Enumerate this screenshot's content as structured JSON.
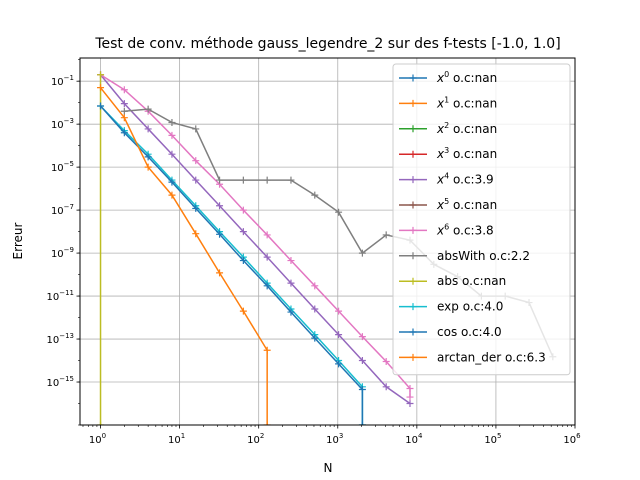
{
  "chart_data": {
    "type": "line",
    "title": "Test de conv. méthode gauss_legendre_2 sur des f-tests [-1.0, 1.0]",
    "xlabel": "N",
    "ylabel": "Erreur",
    "xscale": "log",
    "yscale": "log",
    "xlim": [
      0.55,
      1000000
    ],
    "ylim": [
      1e-17,
      1.2
    ],
    "grid": true,
    "legend_position": "top-right",
    "x_ticks": [
      {
        "value": 1,
        "base": "10",
        "exp": "0"
      },
      {
        "value": 10,
        "base": "10",
        "exp": "1"
      },
      {
        "value": 100,
        "base": "10",
        "exp": "2"
      },
      {
        "value": 1000,
        "base": "10",
        "exp": "3"
      },
      {
        "value": 10000,
        "base": "10",
        "exp": "4"
      },
      {
        "value": 100000,
        "base": "10",
        "exp": "5"
      },
      {
        "value": 1000000,
        "base": "10",
        "exp": "6"
      }
    ],
    "y_ticks": [
      {
        "value": 0.1,
        "base": "10",
        "exp": "−1"
      },
      {
        "value": 0.001,
        "base": "10",
        "exp": "−3"
      },
      {
        "value": 1e-05,
        "base": "10",
        "exp": "−5"
      },
      {
        "value": 1e-07,
        "base": "10",
        "exp": "−7"
      },
      {
        "value": 1e-09,
        "base": "10",
        "exp": "−9"
      },
      {
        "value": 1e-11,
        "base": "10",
        "exp": "−11"
      },
      {
        "value": 1e-13,
        "base": "10",
        "exp": "−13"
      },
      {
        "value": 1e-15,
        "base": "10",
        "exp": "−15"
      }
    ],
    "series": [
      {
        "name": "x^0 o.c:nan",
        "legend_base": "x",
        "legend_sup": "0",
        "legend_rest": " o.c:nan",
        "color": "#1f77b4",
        "points": []
      },
      {
        "name": "x^1 o.c:nan",
        "legend_base": "x",
        "legend_sup": "1",
        "legend_rest": " o.c:nan",
        "color": "#ff7f0e",
        "points": []
      },
      {
        "name": "x^2 o.c:nan",
        "legend_base": "x",
        "legend_sup": "2",
        "legend_rest": " o.c:nan",
        "color": "#2ca02c",
        "points": []
      },
      {
        "name": "x^3 o.c:nan",
        "legend_base": "x",
        "legend_sup": "3",
        "legend_rest": " o.c:nan",
        "color": "#d62728",
        "points": []
      },
      {
        "name": "x^4 o.c:3.9",
        "legend_base": "x",
        "legend_sup": "4",
        "legend_rest": " o.c:3.9",
        "color": "#9467bd",
        "points": [
          [
            1,
            0.2
          ],
          [
            2,
            0.009
          ],
          [
            4,
            0.0006
          ],
          [
            8,
            4e-05
          ],
          [
            16,
            2.5e-06
          ],
          [
            32,
            1.6e-07
          ],
          [
            64,
            1e-08
          ],
          [
            128,
            6.5e-10
          ],
          [
            256,
            4e-11
          ],
          [
            512,
            2.5e-12
          ],
          [
            1024,
            1.6e-13
          ],
          [
            2048,
            1e-14
          ],
          [
            4096,
            6e-16
          ],
          [
            8192,
            1e-16
          ]
        ]
      },
      {
        "name": "x^5 o.c:nan",
        "legend_base": "x",
        "legend_sup": "5",
        "legend_rest": " o.c:nan",
        "color": "#8c564b",
        "points": []
      },
      {
        "name": "x^6 o.c:3.8",
        "legend_base": "x",
        "legend_sup": "6",
        "legend_rest": " o.c:3.8",
        "color": "#e377c2",
        "points": [
          [
            1,
            0.2
          ],
          [
            2,
            0.04
          ],
          [
            4,
            0.004
          ],
          [
            8,
            0.0003
          ],
          [
            16,
            2e-05
          ],
          [
            32,
            1.6e-06
          ],
          [
            64,
            1e-07
          ],
          [
            128,
            7e-09
          ],
          [
            256,
            4.5e-10
          ],
          [
            512,
            3e-11
          ],
          [
            1024,
            2e-12
          ],
          [
            2048,
            1.3e-13
          ],
          [
            4096,
            9e-15
          ],
          [
            8192,
            5e-16
          ],
          [
            8192,
            2e-16
          ]
        ]
      },
      {
        "name": "absWith o.c:2.2",
        "legend_base": "absWith o.c:2.2",
        "legend_sup": "",
        "legend_rest": "",
        "color": "#7f7f7f",
        "points": [
          [
            2,
            0.004
          ],
          [
            4,
            0.005
          ],
          [
            8,
            0.0012
          ],
          [
            16,
            0.0006
          ],
          [
            32,
            2.5e-06
          ],
          [
            64,
            2.5e-06
          ],
          [
            128,
            2.5e-06
          ],
          [
            256,
            2.5e-06
          ],
          [
            512,
            5e-07
          ],
          [
            1024,
            8e-08
          ],
          [
            2048,
            1e-09
          ],
          [
            4096,
            7e-09
          ],
          [
            8192,
            4e-09
          ],
          [
            16384,
            3e-10
          ],
          [
            32768,
            8e-11
          ],
          [
            65536,
            1e-11
          ],
          [
            131072,
            1e-11
          ],
          [
            262144,
            5e-12
          ],
          [
            524288,
            1.5e-14
          ]
        ]
      },
      {
        "name": "abs o.c:nan",
        "legend_base": "abs o.c:nan",
        "legend_sup": "",
        "legend_rest": "",
        "color": "#bcbd22",
        "points": [
          [
            1,
            0.2
          ],
          [
            1,
            1e-17
          ]
        ]
      },
      {
        "name": "exp o.c:4.0",
        "legend_base": "exp o.c:4.0",
        "legend_sup": "",
        "legend_rest": "",
        "color": "#17becf",
        "points": [
          [
            1,
            0.007
          ],
          [
            2,
            0.0005
          ],
          [
            4,
            4e-05
          ],
          [
            8,
            2.5e-06
          ],
          [
            16,
            1.6e-07
          ],
          [
            32,
            1e-08
          ],
          [
            64,
            6.5e-10
          ],
          [
            128,
            4e-11
          ],
          [
            256,
            2.5e-12
          ],
          [
            512,
            1.6e-13
          ],
          [
            1024,
            1e-14
          ],
          [
            2048,
            6e-16
          ],
          [
            2048,
            1e-17
          ]
        ]
      },
      {
        "name": "cos o.c:4.0",
        "legend_base": "cos o.c:4.0",
        "legend_sup": "",
        "legend_rest": "",
        "color": "#1f77b4",
        "points": [
          [
            1,
            0.007
          ],
          [
            2,
            0.0004
          ],
          [
            4,
            3e-05
          ],
          [
            8,
            2e-06
          ],
          [
            16,
            1.2e-07
          ],
          [
            32,
            7.5e-09
          ],
          [
            64,
            4.5e-10
          ],
          [
            128,
            3e-11
          ],
          [
            256,
            1.8e-12
          ],
          [
            512,
            1.1e-13
          ],
          [
            1024,
            7e-15
          ],
          [
            2048,
            4.5e-16
          ],
          [
            2048,
            1e-17
          ]
        ]
      },
      {
        "name": "arctan_der o.c:6.3",
        "legend_base": "arctan_der o.c:6.3",
        "legend_sup": "",
        "legend_rest": "",
        "color": "#ff7f0e",
        "points": [
          [
            1,
            0.05
          ],
          [
            2,
            0.002
          ],
          [
            4,
            1e-05
          ],
          [
            8,
            5e-07
          ],
          [
            16,
            8e-09
          ],
          [
            32,
            1.2e-10
          ],
          [
            64,
            2e-12
          ],
          [
            128,
            3e-14
          ],
          [
            128,
            1e-17
          ]
        ]
      }
    ]
  }
}
